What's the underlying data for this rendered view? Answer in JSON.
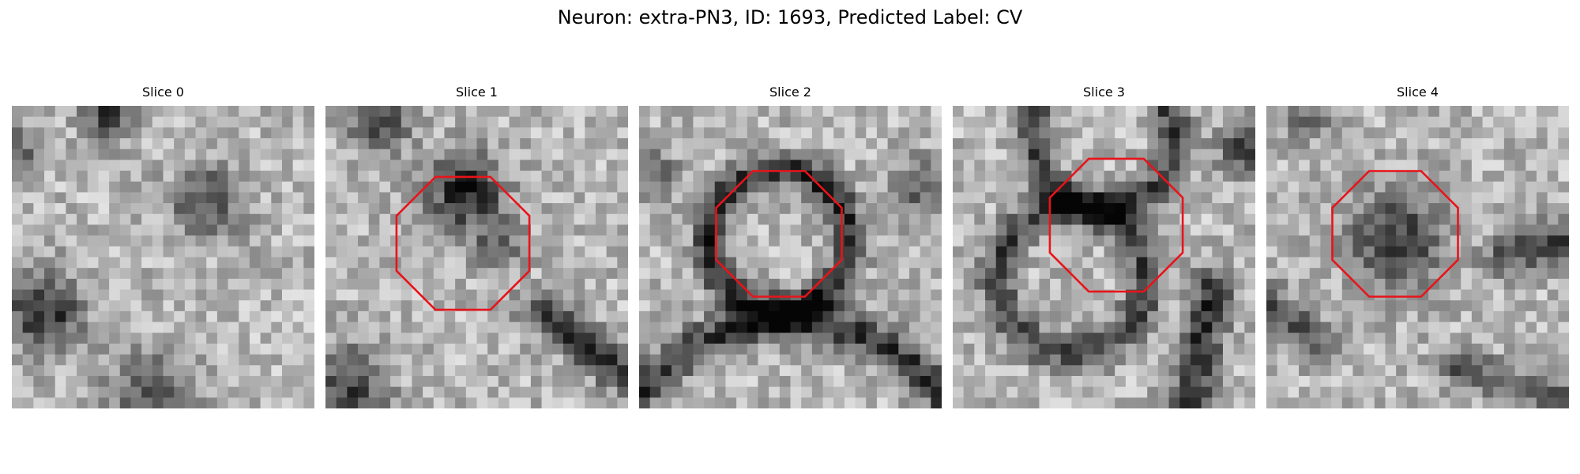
{
  "figure": {
    "title": "Neuron: extra-PN3, ID: 1693, Predicted Label: CV"
  },
  "slices": [
    {
      "label": "Slice 0",
      "has_outline": false,
      "seed": 11
    },
    {
      "label": "Slice 1",
      "has_outline": true,
      "seed": 23
    },
    {
      "label": "Slice 2",
      "has_outline": true,
      "seed": 37
    },
    {
      "label": "Slice 3",
      "has_outline": true,
      "seed": 41
    },
    {
      "label": "Slice 4",
      "has_outline": true,
      "seed": 59
    }
  ],
  "colors": {
    "outline": "#e8141a",
    "background": "#ffffff"
  }
}
